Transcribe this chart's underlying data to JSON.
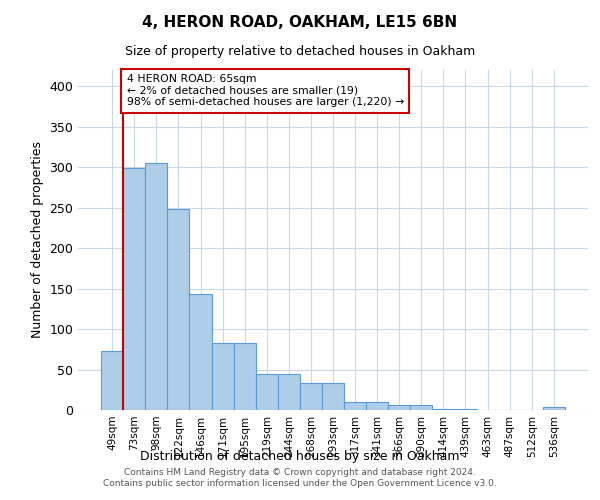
{
  "title1": "4, HERON ROAD, OAKHAM, LE15 6BN",
  "title2": "Size of property relative to detached houses in Oakham",
  "xlabel": "Distribution of detached houses by size in Oakham",
  "ylabel": "Number of detached properties",
  "categories": [
    "49sqm",
    "73sqm",
    "98sqm",
    "122sqm",
    "146sqm",
    "171sqm",
    "195sqm",
    "219sqm",
    "244sqm",
    "268sqm",
    "293sqm",
    "317sqm",
    "341sqm",
    "366sqm",
    "390sqm",
    "414sqm",
    "439sqm",
    "463sqm",
    "487sqm",
    "512sqm",
    "536sqm"
  ],
  "values": [
    73,
    299,
    305,
    248,
    143,
    83,
    83,
    45,
    45,
    33,
    33,
    10,
    10,
    6,
    6,
    1,
    1,
    0,
    0,
    0,
    4
  ],
  "bar_color": "#aecde8",
  "bar_edge_color": "#5b9bd5",
  "annotation_line1": "4 HERON ROAD: 65sqm",
  "annotation_line2": "← 2% of detached houses are smaller (19)",
  "annotation_line3": "98% of semi-detached houses are larger (1,220) →",
  "annotation_box_color": "#ffffff",
  "annotation_edge_color": "#cc0000",
  "vline_color": "#cc0000",
  "vline_x": 0.5,
  "ylim": [
    0,
    420
  ],
  "yticks": [
    0,
    50,
    100,
    150,
    200,
    250,
    300,
    350,
    400
  ],
  "footer1": "Contains HM Land Registry data © Crown copyright and database right 2024.",
  "footer2": "Contains public sector information licensed under the Open Government Licence v3.0.",
  "background_color": "#ffffff",
  "grid_color": "#c8d8e8"
}
